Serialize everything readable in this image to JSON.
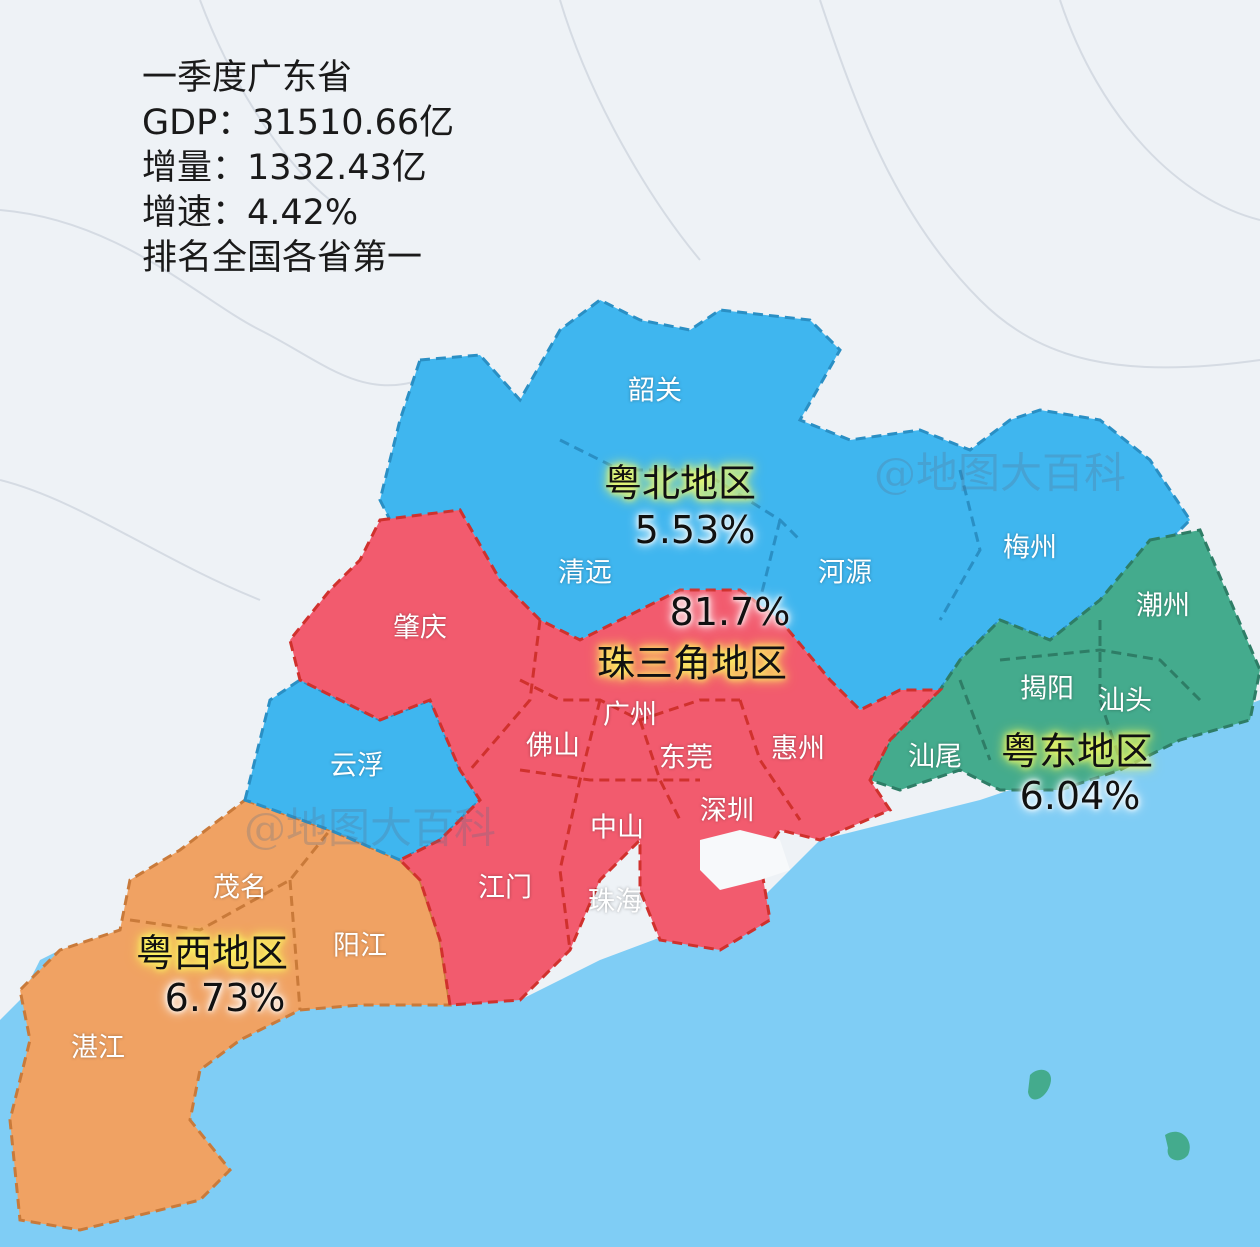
{
  "summary": {
    "line1": "一季度广东省",
    "line2": "GDP：31510.66亿",
    "line3": "增量：1332.43亿",
    "line4": "增速：4.42%",
    "line5": "排名全国各省第一"
  },
  "regions": {
    "north": {
      "name": "粤北地区",
      "value": "5.53%",
      "color": "#3fb6ef"
    },
    "prd": {
      "name": "珠三角地区",
      "value": "81.7%",
      "color": "#f25b6e"
    },
    "east": {
      "name": "粤东地区",
      "value": "6.04%",
      "color": "#44ab8d"
    },
    "west": {
      "name": "粤西地区",
      "value": "6.73%",
      "color": "#f0a263"
    }
  },
  "cities": {
    "shaoguan": "韶关",
    "qingyuan": "清远",
    "heyuan": "河源",
    "meizhou": "梅州",
    "chaozhou": "潮州",
    "jieyang": "揭阳",
    "shantou": "汕头",
    "shanwei": "汕尾",
    "zhaoqing": "肇庆",
    "guangzhou": "广州",
    "foshan": "佛山",
    "dongguan": "东莞",
    "huizhou": "惠州",
    "shenzhen": "深圳",
    "zhongshan": "中山",
    "jiangmen": "江门",
    "zhuhai": "珠海",
    "yunfu": "云浮",
    "maoming": "茂名",
    "yangjiang": "阳江",
    "zhanjiang": "湛江"
  },
  "watermark": "@地图大百科",
  "colors": {
    "sea": "#7fcdf5",
    "land": "#eef2f6",
    "border": "#d0312d"
  }
}
